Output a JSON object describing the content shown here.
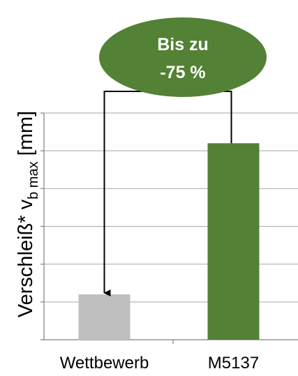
{
  "chart_data": {
    "type": "bar",
    "categories": [
      "Wettbewerb",
      "M5137"
    ],
    "values": [
      1.2,
      5.2
    ],
    "ylim": [
      0,
      6
    ],
    "grid": true,
    "colors": [
      "#bfbfbf",
      "#538135"
    ],
    "ylabel": {
      "main": "Verschleiß* v",
      "sub": "b max",
      "unit": " [mm]"
    },
    "annotation": {
      "line1": "Bis zu",
      "line2": "-75 %",
      "color": "#538135",
      "text_color": "#ffffff"
    }
  }
}
